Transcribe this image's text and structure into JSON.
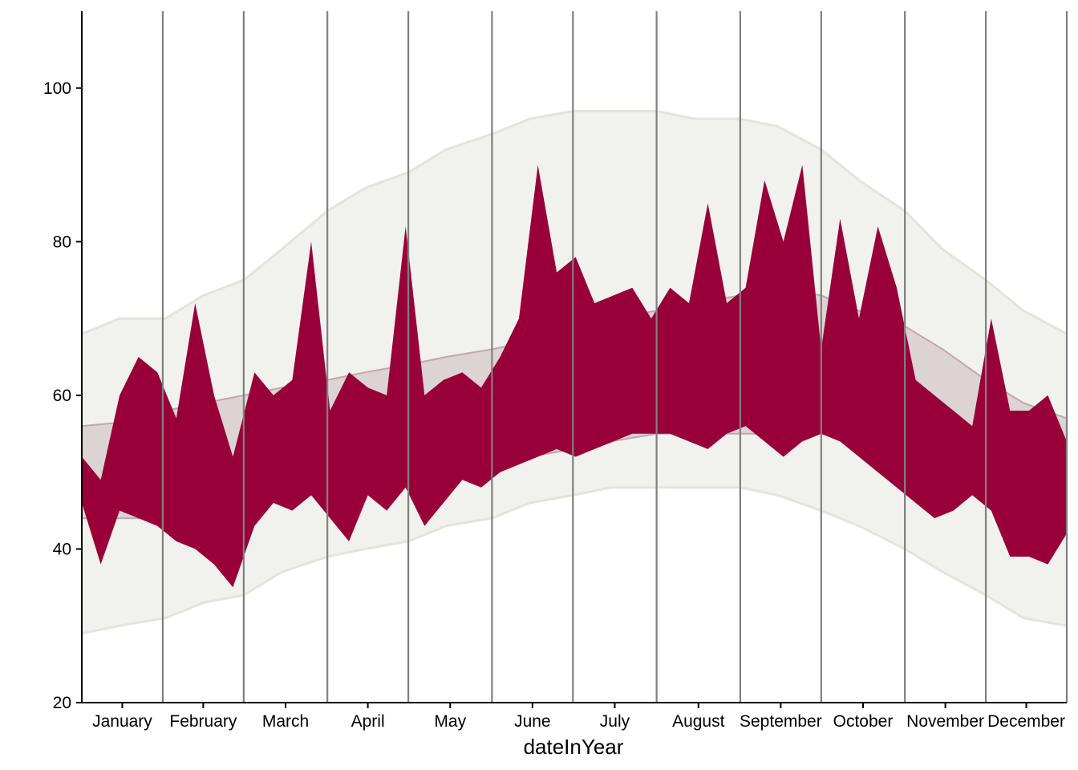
{
  "chart_data": {
    "type": "area",
    "title": "",
    "xlabel": "dateInYear",
    "ylabel": "",
    "x_axis": {
      "type": "date",
      "range": [
        "2000-01-01",
        "2000-12-31"
      ],
      "tick_labels": [
        "January",
        "February",
        "March",
        "April",
        "May",
        "June",
        "July",
        "August",
        "September",
        "October",
        "November",
        "December"
      ],
      "month_dividers": [
        "2000-01-31",
        "2000-03-01",
        "2000-04-01",
        "2000-05-01",
        "2000-06-01",
        "2000-07-01",
        "2000-08-01",
        "2000-09-01",
        "2000-10-01",
        "2000-11-01",
        "2000-12-01",
        "2000-12-31"
      ]
    },
    "y_axis": {
      "range": [
        20,
        110
      ],
      "ticks": [
        20,
        40,
        60,
        80,
        100
      ]
    },
    "grid": false,
    "legend": "none",
    "colors": {
      "record_band": "#f1f1ed",
      "record_line": "#e4e4da",
      "normal_band": "#dcd3d5",
      "normal_line": "#c0a7ac",
      "actual_band": "#990039"
    },
    "series": [
      {
        "layer": "record",
        "x": [
          "2000-01-01",
          "2000-01-15",
          "2000-02-01",
          "2000-02-15",
          "2000-03-01",
          "2000-03-15",
          "2000-04-01",
          "2000-04-15",
          "2000-05-01",
          "2000-05-15",
          "2000-06-01",
          "2000-06-15",
          "2000-07-01",
          "2000-07-15",
          "2000-08-01",
          "2000-08-15",
          "2000-09-01",
          "2000-09-15",
          "2000-10-01",
          "2000-10-15",
          "2000-11-01",
          "2000-11-15",
          "2000-12-01",
          "2000-12-15",
          "2000-12-31"
        ],
        "low": [
          29,
          30,
          31,
          33,
          34,
          37,
          39,
          40,
          41,
          43,
          44,
          46,
          47,
          48,
          48,
          48,
          48,
          47,
          45,
          43,
          40,
          37,
          34,
          31,
          30
        ],
        "high": [
          68,
          70,
          70,
          73,
          75,
          79,
          84,
          87,
          89,
          92,
          94,
          96,
          97,
          97,
          97,
          96,
          96,
          95,
          92,
          88,
          84,
          79,
          75,
          71,
          68
        ]
      },
      {
        "layer": "normal",
        "x": [
          "2000-01-01",
          "2000-01-31",
          "2000-02-01",
          "2000-03-01",
          "2000-03-15",
          "2000-04-01",
          "2000-04-15",
          "2000-05-01",
          "2000-05-15",
          "2000-06-01",
          "2000-06-15",
          "2000-07-01",
          "2000-07-15",
          "2000-08-01",
          "2000-08-15",
          "2000-09-01",
          "2000-09-15",
          "2000-10-01",
          "2000-10-15",
          "2000-11-01",
          "2000-11-15",
          "2000-12-01",
          "2000-12-15",
          "2000-12-31"
        ],
        "low": [
          44,
          44,
          45,
          46,
          47,
          47,
          48,
          49,
          50,
          51,
          52,
          53,
          54,
          55,
          55,
          55,
          55,
          55,
          54,
          53,
          51,
          48,
          46,
          44
        ],
        "high": [
          56,
          57,
          58,
          60,
          61,
          62,
          63,
          64,
          65,
          66,
          67,
          69,
          70,
          71,
          72,
          73,
          74,
          73,
          71,
          69,
          66,
          62,
          59,
          57
        ]
      },
      {
        "layer": "actual",
        "x": [
          "2000-01-01",
          "2000-01-08",
          "2000-01-15",
          "2000-01-22",
          "2000-01-29",
          "2000-02-05",
          "2000-02-12",
          "2000-02-19",
          "2000-02-26",
          "2000-03-05",
          "2000-03-12",
          "2000-03-19",
          "2000-03-26",
          "2000-04-02",
          "2000-04-09",
          "2000-04-16",
          "2000-04-23",
          "2000-04-30",
          "2000-05-07",
          "2000-05-14",
          "2000-05-21",
          "2000-05-28",
          "2000-06-04",
          "2000-06-11",
          "2000-06-18",
          "2000-06-25",
          "2000-07-02",
          "2000-07-09",
          "2000-07-16",
          "2000-07-23",
          "2000-07-30",
          "2000-08-06",
          "2000-08-13",
          "2000-08-20",
          "2000-08-27",
          "2000-09-03",
          "2000-09-10",
          "2000-09-17",
          "2000-09-24",
          "2000-10-01",
          "2000-10-08",
          "2000-10-15",
          "2000-10-22",
          "2000-10-29",
          "2000-11-05",
          "2000-11-12",
          "2000-11-19",
          "2000-11-26",
          "2000-12-03",
          "2000-12-10",
          "2000-12-17",
          "2000-12-24",
          "2000-12-31"
        ],
        "low": [
          46,
          38,
          45,
          44,
          43,
          41,
          40,
          38,
          35,
          43,
          46,
          45,
          47,
          44,
          41,
          47,
          45,
          48,
          43,
          46,
          49,
          48,
          50,
          51,
          52,
          53,
          52,
          53,
          54,
          55,
          55,
          55,
          54,
          53,
          55,
          56,
          54,
          52,
          54,
          55,
          54,
          52,
          50,
          48,
          46,
          44,
          45,
          47,
          45,
          39,
          39,
          38,
          42
        ],
        "high": [
          52,
          49,
          60,
          65,
          63,
          57,
          72,
          60,
          52,
          63,
          60,
          62,
          80,
          58,
          63,
          61,
          60,
          82,
          60,
          62,
          63,
          61,
          65,
          70,
          90,
          76,
          78,
          72,
          73,
          74,
          70,
          74,
          72,
          85,
          72,
          74,
          88,
          80,
          90,
          66,
          83,
          70,
          82,
          74,
          62,
          60,
          58,
          56,
          70,
          58,
          58,
          60,
          54
        ]
      }
    ]
  }
}
